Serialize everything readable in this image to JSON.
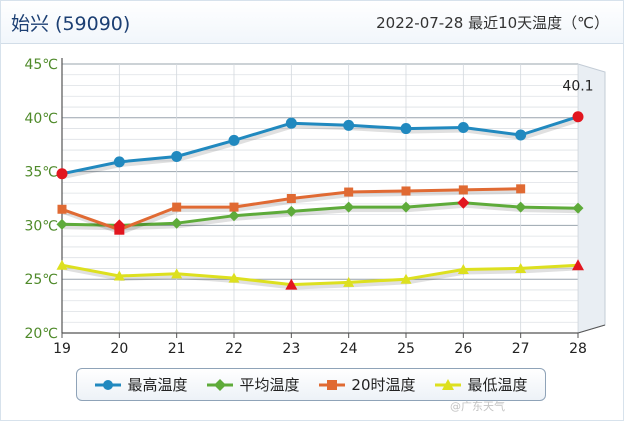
{
  "header": {
    "station": "始兴 (59090)",
    "subtitle": "2022-07-28  最近10天温度（℃）"
  },
  "watermark": "@广东天气",
  "chart_data": {
    "type": "line",
    "categories": [
      "19",
      "20",
      "21",
      "22",
      "23",
      "24",
      "25",
      "26",
      "27",
      "28"
    ],
    "y_ticks": [
      "20℃",
      "25℃",
      "30℃",
      "35℃",
      "40℃",
      "45℃"
    ],
    "ylim": [
      20,
      45
    ],
    "grid": true,
    "legend_position": "bottom",
    "annotations": [
      {
        "category": "28",
        "series": "最高温度",
        "text": "40.1"
      }
    ],
    "series": [
      {
        "name": "最高温度",
        "color": "#2189bf",
        "marker": "circle",
        "values": [
          34.8,
          35.9,
          36.4,
          37.9,
          39.5,
          39.3,
          39.0,
          39.1,
          38.4,
          40.1
        ],
        "highlight": {
          "0": "#e2161f",
          "9": "#e2161f"
        }
      },
      {
        "name": "平均温度",
        "color": "#5eab3a",
        "marker": "diamond",
        "values": [
          30.1,
          30.0,
          30.2,
          30.9,
          31.3,
          31.7,
          31.7,
          32.1,
          31.7,
          31.6
        ],
        "highlight": {
          "1": "#e2161f",
          "7": "#e2161f"
        }
      },
      {
        "name": "20时温度",
        "color": "#e06a33",
        "marker": "square",
        "values": [
          31.5,
          29.6,
          31.7,
          31.7,
          32.5,
          33.1,
          33.2,
          33.3,
          33.4,
          null
        ],
        "highlight": {
          "1": "#e2161f"
        }
      },
      {
        "name": "最低温度",
        "color": "#dde01f",
        "marker": "triangle",
        "values": [
          26.3,
          25.3,
          25.5,
          25.1,
          24.5,
          24.7,
          25.0,
          25.9,
          26.0,
          26.3
        ],
        "highlight": {
          "4": "#e2161f",
          "9": "#e2161f"
        }
      }
    ]
  }
}
